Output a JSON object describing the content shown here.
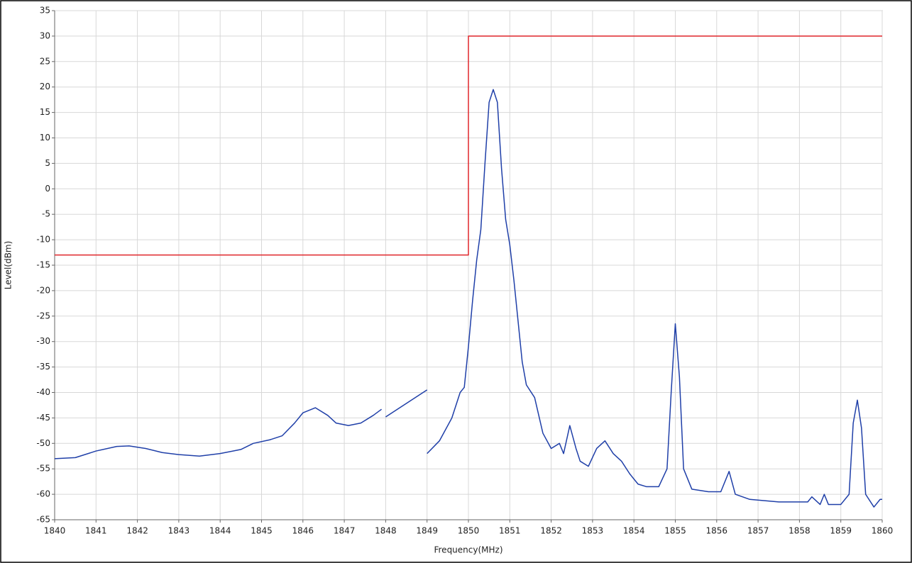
{
  "chart_data": {
    "type": "line",
    "xlabel": "Frequency(MHz)",
    "ylabel": "Level(dBm)",
    "xlim": [
      1840,
      1860
    ],
    "xticks": [
      1840,
      1841,
      1842,
      1843,
      1844,
      1845,
      1846,
      1847,
      1848,
      1849,
      1850,
      1851,
      1852,
      1853,
      1854,
      1855,
      1856,
      1857,
      1858,
      1859,
      1860
    ],
    "ylim": [
      -65,
      35
    ],
    "yticks": [
      -65,
      -60,
      -55,
      -50,
      -45,
      -40,
      -35,
      -30,
      -25,
      -20,
      -15,
      -10,
      -5,
      0,
      5,
      10,
      15,
      20,
      25,
      30,
      35
    ],
    "grid": true,
    "series": [
      {
        "color": "#e0262b",
        "x": [
          1840,
          1850,
          1850,
          1860
        ],
        "values": [
          -13,
          -13,
          30,
          30
        ]
      },
      {
        "color": "#1f3fa8",
        "x": [
          1840,
          1840.5,
          1841,
          1841.5,
          1841.8,
          1842.2,
          1842.6,
          1843,
          1843.5,
          1844,
          1844.5,
          1844.8,
          1845.2,
          1845.5,
          1845.8,
          1846,
          1846.3,
          1846.6,
          1846.8,
          1847.1,
          1847.4,
          1847.7,
          1847.9,
          null,
          1848,
          1849,
          null,
          1849,
          1849.3,
          1849.6,
          1849.8,
          1849.9,
          1850,
          1850.1,
          1850.2,
          1850.3,
          1850.4,
          1850.5,
          1850.6,
          1850.7,
          1850.8,
          1850.9,
          1851,
          1851.1,
          1851.2,
          1851.3,
          1851.4,
          1851.6,
          1851.8,
          1852,
          1852.2,
          1852.3,
          1852.45,
          1852.6,
          1852.7,
          1852.9,
          1853.1,
          1853.3,
          1853.5,
          1853.7,
          1853.9,
          1854.1,
          1854.3,
          1854.6,
          1854.8,
          1854.9,
          1855,
          1855.1,
          1855.2,
          1855.4,
          1855.8,
          1856.1,
          1856.3,
          1856.45,
          1856.8,
          1857.5,
          1858.2,
          1858.3,
          1858.5,
          1858.6,
          1858.7,
          1859,
          1859.2,
          1859.3,
          1859.4,
          1859.5,
          1859.6,
          1859.8,
          1859.95,
          1860
        ],
        "values": [
          -53,
          -52.8,
          -51.5,
          -50.6,
          -50.5,
          -51,
          -51.8,
          -52.2,
          -52.5,
          -52,
          -51.2,
          -50,
          -49.3,
          -48.5,
          -46,
          -44,
          -43,
          -44.5,
          -46,
          -46.5,
          -46,
          -44.5,
          -43.3,
          null,
          -44.8,
          -39.5,
          null,
          -52,
          -49.5,
          -45,
          -40,
          -39,
          -31,
          -22,
          -14,
          -8,
          5,
          17,
          19.5,
          17,
          4,
          -6,
          -11,
          -18,
          -26,
          -34,
          -38.5,
          -41,
          -48,
          -51,
          -50,
          -52,
          -46.5,
          -51,
          -53.5,
          -54.5,
          -51,
          -49.5,
          -52,
          -53.5,
          -56,
          -58,
          -58.5,
          -58.5,
          -55,
          -40,
          -26.5,
          -37,
          -55,
          -59,
          -59.5,
          -59.5,
          -55.5,
          -60,
          -61,
          -61.5,
          -61.5,
          -60.5,
          -62,
          -60,
          -62,
          -62,
          -60,
          -46,
          -41.5,
          -47,
          -60,
          -62.5,
          -61,
          -61
        ]
      }
    ]
  }
}
